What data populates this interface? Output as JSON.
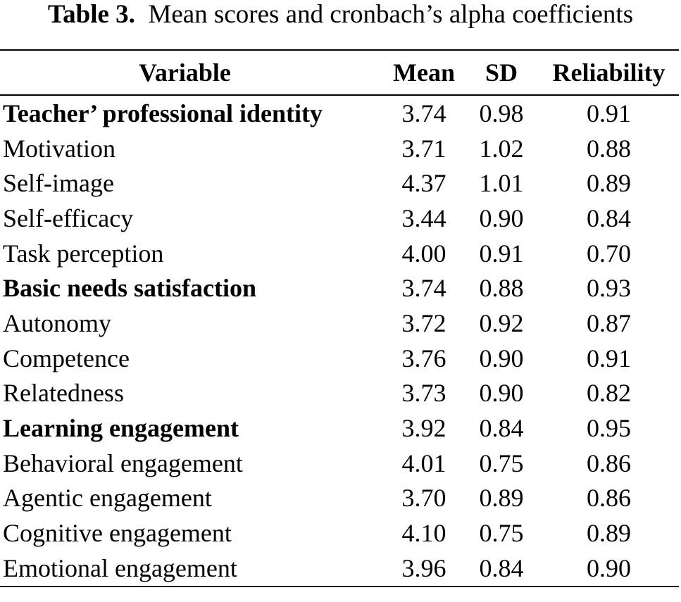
{
  "caption": {
    "label": "Table 3.",
    "text": "Mean scores and cronbach’s alpha coefficients"
  },
  "table": {
    "headers": {
      "variable": "Variable",
      "mean": "Mean",
      "sd": "SD",
      "reliability": "Reliability"
    },
    "rows": [
      {
        "variable": "Teacher’ professional identity",
        "mean": "3.74",
        "sd": "0.98",
        "reliability": "0.91",
        "group": true
      },
      {
        "variable": "Motivation",
        "mean": "3.71",
        "sd": "1.02",
        "reliability": "0.88",
        "group": false
      },
      {
        "variable": "Self-image",
        "mean": "4.37",
        "sd": "1.01",
        "reliability": "0.89",
        "group": false
      },
      {
        "variable": "Self-efficacy",
        "mean": "3.44",
        "sd": "0.90",
        "reliability": "0.84",
        "group": false
      },
      {
        "variable": "Task perception",
        "mean": "4.00",
        "sd": "0.91",
        "reliability": "0.70",
        "group": false
      },
      {
        "variable": "Basic needs satisfaction",
        "mean": "3.74",
        "sd": "0.88",
        "reliability": "0.93",
        "group": true
      },
      {
        "variable": "Autonomy",
        "mean": "3.72",
        "sd": "0.92",
        "reliability": "0.87",
        "group": false
      },
      {
        "variable": "Competence",
        "mean": "3.76",
        "sd": "0.90",
        "reliability": "0.91",
        "group": false
      },
      {
        "variable": "Relatedness",
        "mean": "3.73",
        "sd": "0.90",
        "reliability": "0.82",
        "group": false
      },
      {
        "variable": "Learning engagement",
        "mean": "3.92",
        "sd": "0.84",
        "reliability": "0.95",
        "group": true
      },
      {
        "variable": "Behavioral engagement",
        "mean": "4.01",
        "sd": "0.75",
        "reliability": "0.86",
        "group": false
      },
      {
        "variable": "Agentic engagement",
        "mean": "3.70",
        "sd": "0.89",
        "reliability": "0.86",
        "group": false
      },
      {
        "variable": "Cognitive engagement",
        "mean": "4.10",
        "sd": "0.75",
        "reliability": "0.89",
        "group": false
      },
      {
        "variable": "Emotional engagement",
        "mean": "3.96",
        "sd": "0.84",
        "reliability": "0.90",
        "group": false
      }
    ]
  }
}
